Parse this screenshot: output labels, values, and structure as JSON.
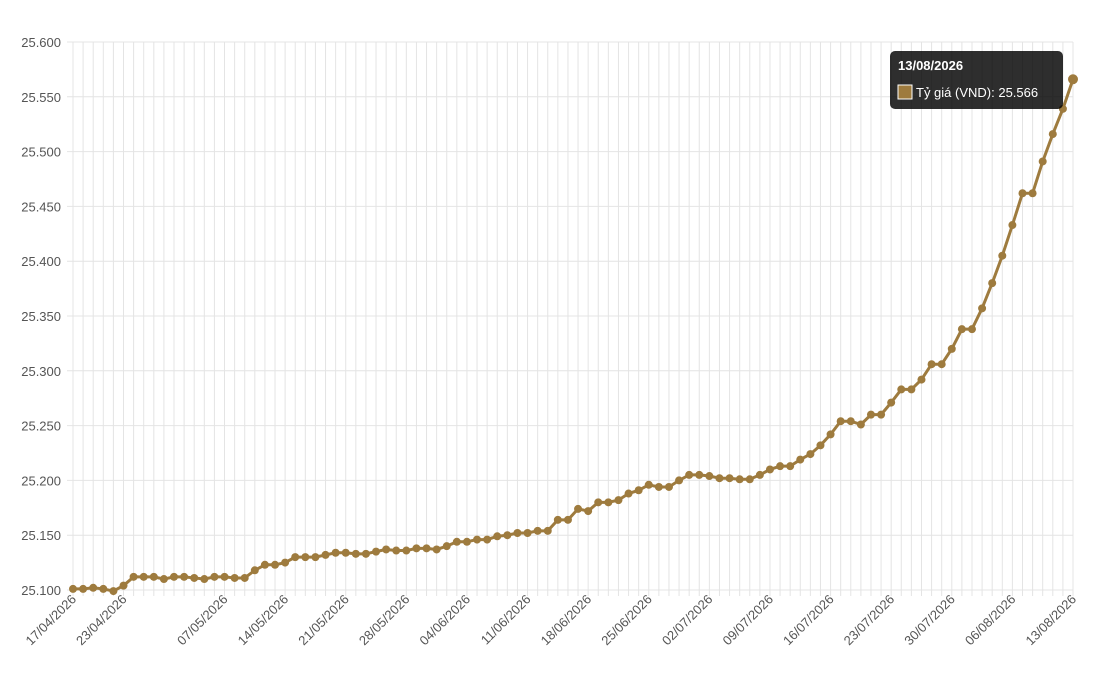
{
  "chart_data": {
    "type": "line",
    "categories": [
      "17/04/2026",
      null,
      null,
      null,
      null,
      "23/04/2026",
      null,
      null,
      null,
      null,
      null,
      null,
      null,
      null,
      null,
      "07/05/2026",
      null,
      null,
      null,
      null,
      null,
      "14/05/2026",
      null,
      null,
      null,
      null,
      null,
      "21/05/2026",
      null,
      null,
      null,
      null,
      null,
      "28/05/2026",
      null,
      null,
      null,
      null,
      null,
      "04/06/2026",
      null,
      null,
      null,
      null,
      null,
      "11/06/2026",
      null,
      null,
      null,
      null,
      null,
      "18/06/2026",
      null,
      null,
      null,
      null,
      null,
      "25/06/2026",
      null,
      null,
      null,
      null,
      null,
      "02/07/2026",
      null,
      null,
      null,
      null,
      null,
      "09/07/2026",
      null,
      null,
      null,
      null,
      null,
      "16/07/2026",
      null,
      null,
      null,
      null,
      null,
      "23/07/2026",
      null,
      null,
      null,
      null,
      null,
      "30/07/2026",
      null,
      null,
      null,
      null,
      null,
      "06/08/2026",
      null,
      null,
      null,
      null,
      null,
      "13/08/2026"
    ],
    "series": [
      {
        "name": "Tỷ giá (VND)",
        "color": "#9e7b3e",
        "values": [
          25.101,
          25.101,
          25.102,
          25.101,
          25.099,
          25.104,
          25.112,
          25.112,
          25.112,
          25.11,
          25.112,
          25.112,
          25.111,
          25.11,
          25.112,
          25.112,
          25.111,
          25.111,
          25.118,
          25.123,
          25.123,
          25.125,
          25.13,
          25.13,
          25.13,
          25.132,
          25.134,
          25.134,
          25.133,
          25.133,
          25.135,
          25.137,
          25.136,
          25.136,
          25.138,
          25.138,
          25.137,
          25.14,
          25.144,
          25.144,
          25.146,
          25.146,
          25.149,
          25.15,
          25.152,
          25.152,
          25.154,
          25.154,
          25.164,
          25.164,
          25.174,
          25.172,
          25.18,
          25.18,
          25.182,
          25.188,
          25.191,
          25.196,
          25.194,
          25.194,
          25.2,
          25.205,
          25.205,
          25.204,
          25.202,
          25.202,
          25.201,
          25.201,
          25.205,
          25.21,
          25.213,
          25.213,
          25.219,
          25.224,
          25.232,
          25.242,
          25.254,
          25.254,
          25.251,
          25.26,
          25.26,
          25.271,
          25.283,
          25.283,
          25.292,
          25.306,
          25.306,
          25.32,
          25.338,
          25.338,
          25.357,
          25.38,
          25.405,
          25.433,
          25.462,
          25.462,
          25.491,
          25.516,
          25.539,
          25.566
        ]
      }
    ],
    "ylim": [
      25.1,
      25.6
    ],
    "yticks": [
      {
        "value": 25.1,
        "label": "25.100"
      },
      {
        "value": 25.15,
        "label": "25.150"
      },
      {
        "value": 25.2,
        "label": "25.200"
      },
      {
        "value": 25.25,
        "label": "25.250"
      },
      {
        "value": 25.3,
        "label": "25.300"
      },
      {
        "value": 25.35,
        "label": "25.350"
      },
      {
        "value": 25.4,
        "label": "25.400"
      },
      {
        "value": 25.45,
        "label": "25.450"
      },
      {
        "value": 25.5,
        "label": "25.500"
      },
      {
        "value": 25.55,
        "label": "25.550"
      },
      {
        "value": 25.6,
        "label": "25.600"
      }
    ],
    "grid": true,
    "tooltip": {
      "title": "13/08/2026",
      "label": "Tỷ giá (VND): 25.566"
    }
  }
}
